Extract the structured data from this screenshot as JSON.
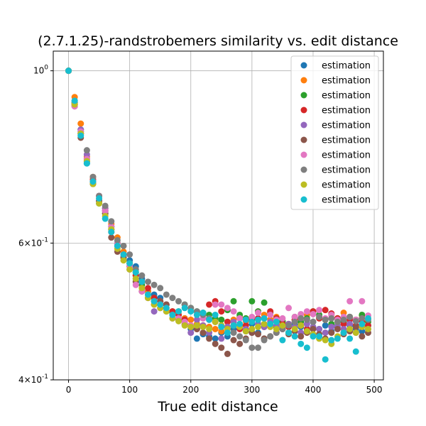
{
  "chart_data": {
    "type": "scatter",
    "title": "(2.7.1.25)-randstrobemers similarity vs. edit distance",
    "xlabel": "True edit distance",
    "ylabel": "",
    "xlim": [
      -25,
      515
    ],
    "ylim": [
      0.4,
      1.06
    ],
    "yscale": "log",
    "grid": true,
    "legend_position": "top-right",
    "x_ticks": [
      0,
      100,
      200,
      300,
      400,
      500
    ],
    "x_tick_labels": [
      "0",
      "100",
      "200",
      "300",
      "400",
      "500"
    ],
    "y_ticks": [
      1.0,
      0.6,
      0.4
    ],
    "y_tick_labels": [
      "10^0",
      "6×10^-1",
      "4×10^-1"
    ],
    "x": [
      0,
      10,
      20,
      30,
      40,
      50,
      60,
      70,
      80,
      90,
      100,
      110,
      120,
      130,
      140,
      150,
      160,
      170,
      180,
      190,
      200,
      210,
      220,
      230,
      240,
      250,
      260,
      270,
      280,
      290,
      300,
      310,
      320,
      330,
      340,
      350,
      360,
      370,
      380,
      390,
      400,
      410,
      420,
      430,
      440,
      450,
      460,
      470,
      480,
      490
    ],
    "series": [
      {
        "name": "estimation",
        "color": "#1f77b4",
        "values": [
          1.0,
          0.915,
          0.84,
          0.76,
          0.72,
          0.68,
          0.66,
          0.63,
          0.6,
          0.58,
          0.57,
          0.56,
          0.54,
          0.52,
          0.515,
          0.51,
          0.5,
          0.49,
          0.485,
          0.48,
          0.465,
          0.452,
          0.458,
          0.455,
          0.452,
          0.46,
          0.455,
          0.465,
          0.47,
          0.462,
          0.472,
          0.46,
          0.452,
          0.47,
          0.468,
          0.475,
          0.46,
          0.472,
          0.468,
          0.462,
          0.475,
          0.465,
          0.47,
          0.462,
          0.468,
          0.475,
          0.47,
          0.465,
          0.462,
          0.47
        ]
      },
      {
        "name": "estimation",
        "color": "#ff7f0e",
        "values": [
          1.0,
          0.925,
          0.855,
          0.775,
          0.73,
          0.685,
          0.665,
          0.635,
          0.61,
          0.585,
          0.565,
          0.545,
          0.535,
          0.52,
          0.51,
          0.505,
          0.495,
          0.49,
          0.485,
          0.48,
          0.478,
          0.472,
          0.47,
          0.468,
          0.465,
          0.462,
          0.475,
          0.478,
          0.482,
          0.476,
          0.48,
          0.49,
          0.485,
          0.478,
          0.482,
          0.476,
          0.472,
          0.478,
          0.48,
          0.485,
          0.49,
          0.482,
          0.478,
          0.485,
          0.48,
          0.488,
          0.482,
          0.478,
          0.484,
          0.48
        ]
      },
      {
        "name": "estimation",
        "color": "#2ca02c",
        "values": [
          1.0,
          0.91,
          0.835,
          0.765,
          0.715,
          0.675,
          0.655,
          0.625,
          0.6,
          0.575,
          0.565,
          0.55,
          0.53,
          0.515,
          0.51,
          0.5,
          0.495,
          0.488,
          0.49,
          0.5,
          0.495,
          0.49,
          0.488,
          0.485,
          0.48,
          0.478,
          0.492,
          0.505,
          0.485,
          0.48,
          0.505,
          0.49,
          0.503,
          0.488,
          0.48,
          0.476,
          0.472,
          0.482,
          0.475,
          0.48,
          0.49,
          0.485,
          0.478,
          0.472,
          0.48,
          0.475,
          0.482,
          0.478,
          0.485,
          0.475
        ]
      },
      {
        "name": "estimation",
        "color": "#d62728",
        "values": [
          1.0,
          0.905,
          0.83,
          0.77,
          0.725,
          0.69,
          0.66,
          0.62,
          0.595,
          0.58,
          0.56,
          0.545,
          0.535,
          0.525,
          0.51,
          0.505,
          0.5,
          0.49,
          0.485,
          0.478,
          0.47,
          0.465,
          0.47,
          0.5,
          0.505,
          0.49,
          0.475,
          0.47,
          0.465,
          0.47,
          0.478,
          0.48,
          0.468,
          0.49,
          0.48,
          0.472,
          0.468,
          0.478,
          0.47,
          0.465,
          0.49,
          0.48,
          0.492,
          0.487,
          0.48,
          0.472,
          0.478,
          0.47,
          0.475,
          0.47
        ]
      },
      {
        "name": "estimation",
        "color": "#9467bd",
        "values": [
          1.0,
          0.905,
          0.84,
          0.78,
          0.72,
          0.68,
          0.665,
          0.625,
          0.595,
          0.575,
          0.555,
          0.54,
          0.52,
          0.51,
          0.49,
          0.495,
          0.49,
          0.48,
          0.48,
          0.475,
          0.46,
          0.478,
          0.47,
          0.46,
          0.475,
          0.452,
          0.468,
          0.475,
          0.48,
          0.465,
          0.46,
          0.472,
          0.468,
          0.475,
          0.47,
          0.465,
          0.472,
          0.468,
          0.46,
          0.472,
          0.468,
          0.465,
          0.46,
          0.468,
          0.47,
          0.465,
          0.472,
          0.46,
          0.468,
          0.465
        ]
      },
      {
        "name": "estimation",
        "color": "#8c564b",
        "values": [
          1.0,
          0.9,
          0.82,
          0.765,
          0.715,
          0.68,
          0.655,
          0.61,
          0.585,
          0.575,
          0.56,
          0.535,
          0.52,
          0.51,
          0.5,
          0.505,
          0.5,
          0.485,
          0.478,
          0.472,
          0.468,
          0.465,
          0.46,
          0.452,
          0.445,
          0.44,
          0.432,
          0.45,
          0.445,
          0.452,
          0.46,
          0.458,
          0.452,
          0.455,
          0.46,
          0.465,
          0.458,
          0.462,
          0.455,
          0.46,
          0.465,
          0.458,
          0.452,
          0.46,
          0.465,
          0.458,
          0.462,
          0.468,
          0.455,
          0.46
        ]
      },
      {
        "name": "estimation",
        "color": "#e377c2",
        "values": [
          1.0,
          0.9,
          0.835,
          0.77,
          0.72,
          0.69,
          0.66,
          0.63,
          0.6,
          0.58,
          0.56,
          0.53,
          0.52,
          0.51,
          0.505,
          0.5,
          0.495,
          0.485,
          0.48,
          0.475,
          0.47,
          0.485,
          0.48,
          0.478,
          0.5,
          0.5,
          0.495,
          0.49,
          0.48,
          0.478,
          0.482,
          0.488,
          0.48,
          0.485,
          0.478,
          0.48,
          0.495,
          0.482,
          0.486,
          0.49,
          0.486,
          0.492,
          0.48,
          0.485,
          0.478,
          0.482,
          0.505,
          0.478,
          0.505,
          0.484
        ]
      },
      {
        "name": "estimation",
        "color": "#7f7f7f",
        "values": [
          1.0,
          0.91,
          0.83,
          0.79,
          0.73,
          0.69,
          0.67,
          0.64,
          0.605,
          0.595,
          0.58,
          0.555,
          0.545,
          0.535,
          0.53,
          0.525,
          0.515,
          0.51,
          0.505,
          0.5,
          0.495,
          0.49,
          0.485,
          0.48,
          0.475,
          0.47,
          0.465,
          0.46,
          0.455,
          0.45,
          0.44,
          0.44,
          0.45,
          0.455,
          0.46,
          0.465,
          0.47,
          0.475,
          0.48,
          0.478,
          0.475,
          0.482,
          0.478,
          0.48,
          0.475,
          0.478,
          0.482,
          0.476,
          0.48,
          0.478
        ]
      },
      {
        "name": "estimation",
        "color": "#bcbd22",
        "values": [
          1.0,
          0.905,
          0.83,
          0.765,
          0.715,
          0.675,
          0.65,
          0.625,
          0.59,
          0.57,
          0.555,
          0.54,
          0.525,
          0.51,
          0.5,
          0.495,
          0.49,
          0.48,
          0.476,
          0.47,
          0.468,
          0.47,
          0.468,
          0.465,
          0.475,
          0.47,
          0.465,
          0.47,
          0.468,
          0.462,
          0.465,
          0.468,
          0.472,
          0.468,
          0.465,
          0.47,
          0.46,
          0.465,
          0.47,
          0.462,
          0.458,
          0.452,
          0.45,
          0.445,
          0.455,
          0.46,
          0.465,
          0.46,
          0.468,
          0.465
        ]
      },
      {
        "name": "estimation",
        "color": "#17becf",
        "values": [
          1.0,
          0.915,
          0.825,
          0.76,
          0.72,
          0.685,
          0.645,
          0.62,
          0.595,
          0.58,
          0.565,
          0.55,
          0.535,
          0.515,
          0.505,
          0.5,
          0.495,
          0.485,
          0.49,
          0.495,
          0.49,
          0.485,
          0.488,
          0.478,
          0.485,
          0.468,
          0.46,
          0.47,
          0.472,
          0.478,
          0.475,
          0.478,
          0.48,
          0.472,
          0.475,
          0.45,
          0.46,
          0.455,
          0.445,
          0.44,
          0.455,
          0.455,
          0.425,
          0.45,
          0.452,
          0.46,
          0.452,
          0.435,
          0.472,
          0.48
        ]
      }
    ]
  }
}
